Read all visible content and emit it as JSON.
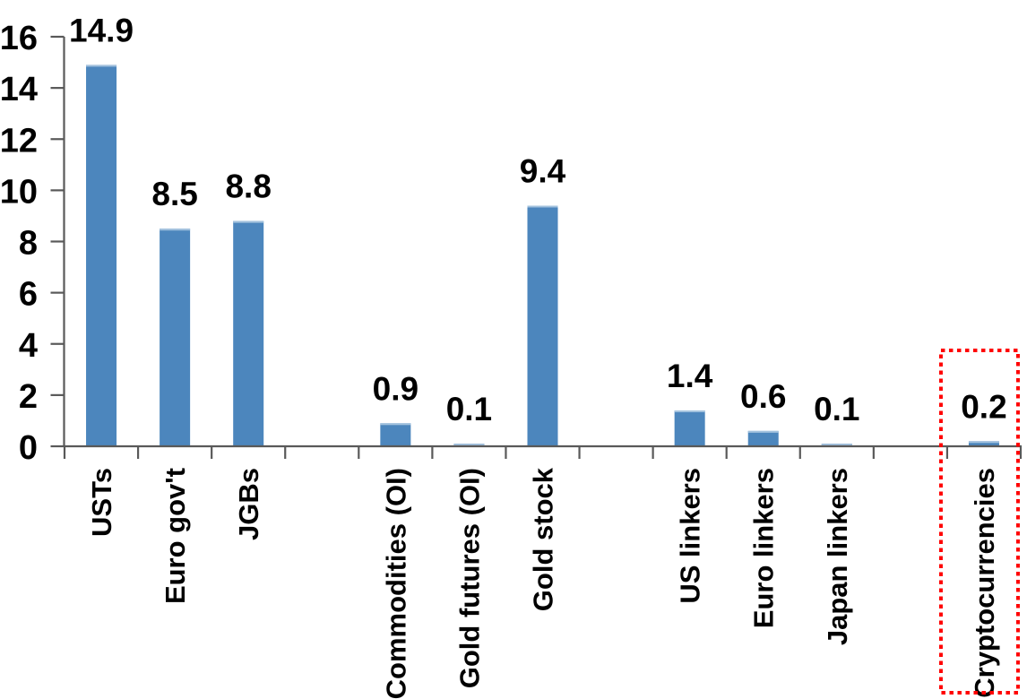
{
  "chart_data": {
    "type": "bar",
    "title": "",
    "xlabel": "",
    "ylabel": "",
    "categories": [
      "USTs",
      "Euro gov't",
      "JGBs",
      "",
      "Commodities (OI)",
      "Gold futures (OI)",
      "Gold stock",
      "",
      "US linkers",
      "Euro linkers",
      "Japan linkers",
      "",
      "Cryptocurrencies"
    ],
    "values": [
      14.9,
      8.5,
      8.8,
      null,
      0.9,
      0.1,
      9.4,
      null,
      1.4,
      0.6,
      0.1,
      null,
      0.2
    ],
    "value_labels": [
      "14.9",
      "8.5",
      "8.8",
      "",
      "0.9",
      "0.1",
      "9.4",
      "",
      "1.4",
      "0.6",
      "0.1",
      "",
      "0.2"
    ],
    "y_ticks": [
      0,
      2,
      4,
      6,
      8,
      10,
      12,
      14,
      16
    ],
    "ylim": [
      0,
      16
    ],
    "grid": false,
    "legend": false,
    "bar_color": "#4C86BD",
    "bar_top_edge_color": "#A3C2DE",
    "axis_color": "#595959",
    "label_color": "#000000",
    "highlight_box": {
      "category": "Cryptocurrencies",
      "color": "#FF0000",
      "border_style": "dotted"
    }
  }
}
